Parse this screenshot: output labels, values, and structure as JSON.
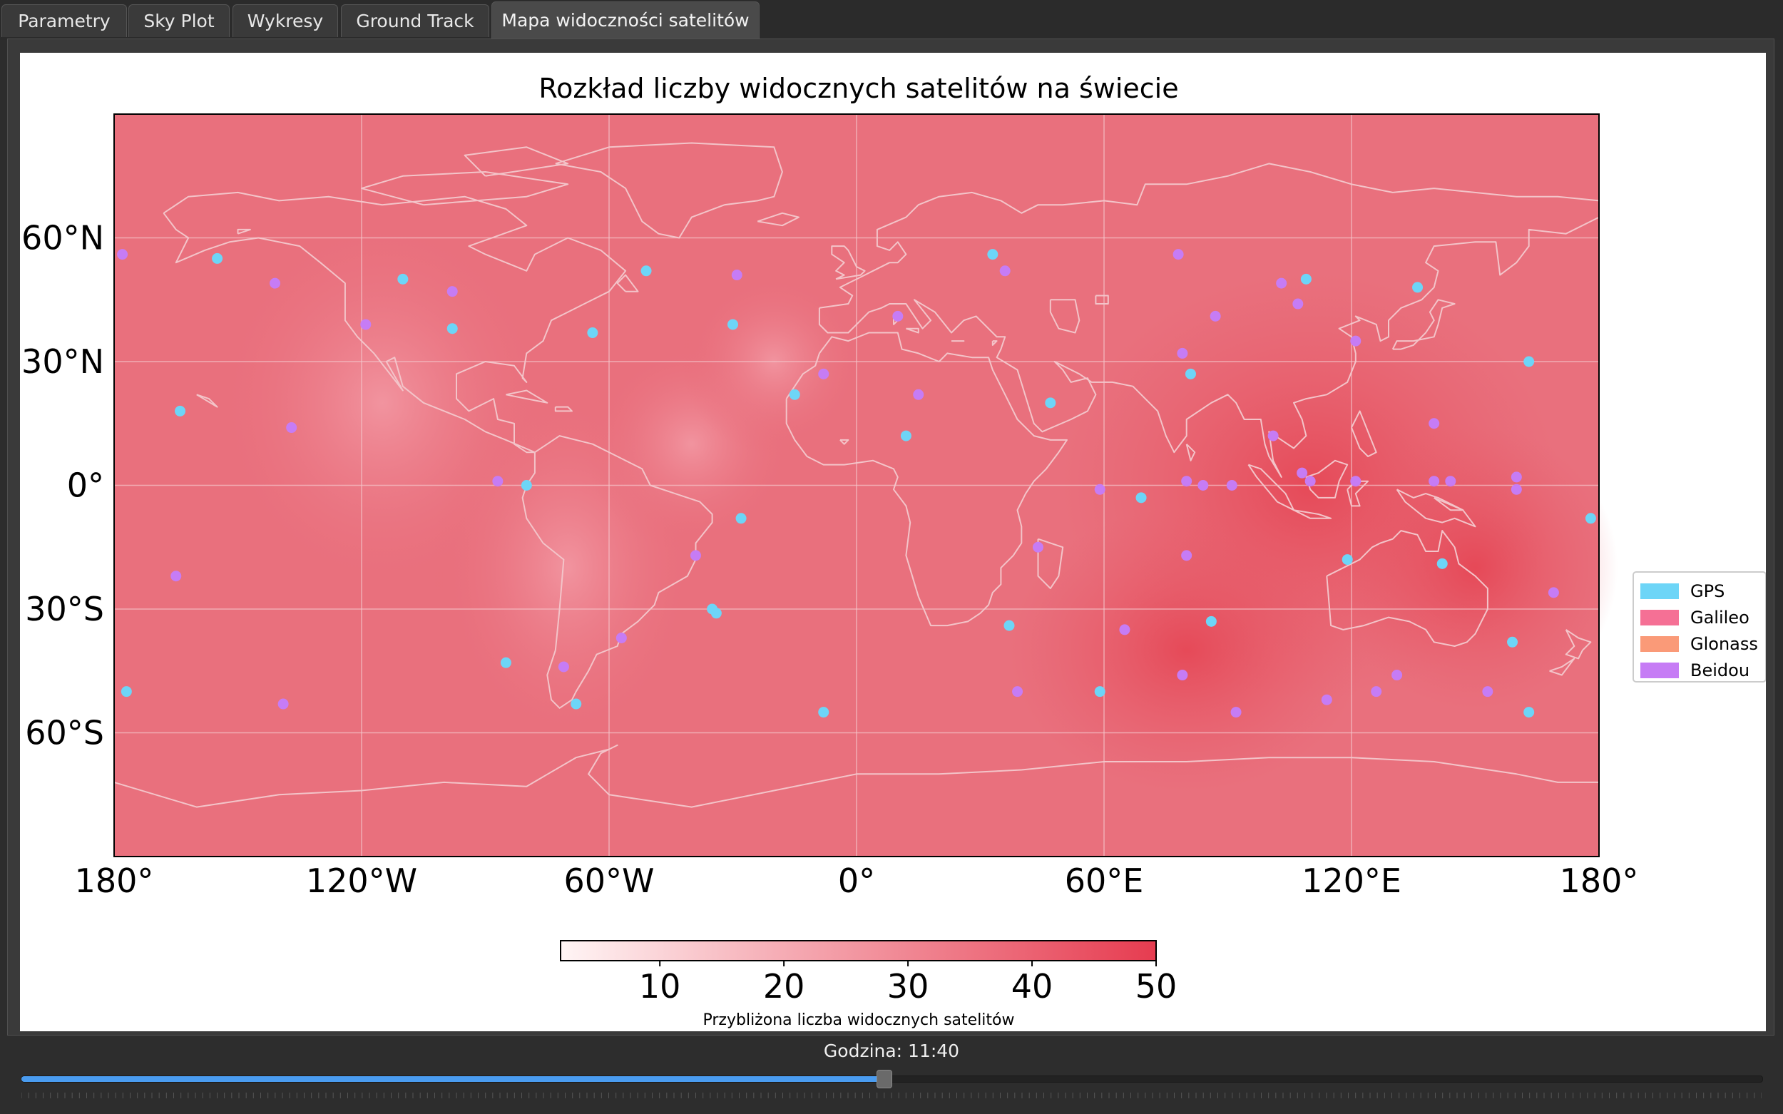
{
  "tabs": [
    {
      "label": "Parametry",
      "active": false
    },
    {
      "label": "Sky Plot",
      "active": false
    },
    {
      "label": "Wykresy",
      "active": false
    },
    {
      "label": "Ground Track",
      "active": false
    },
    {
      "label": "Mapa widoczności satelitów",
      "active": true
    }
  ],
  "time_label": "Godzina: 11:40",
  "slider": {
    "value_fraction": 0.496
  },
  "chart_data": {
    "type": "heatmap",
    "title": "Rozkład liczby widocznych satelitów na świecie",
    "x_tick_labels": [
      "180°",
      "120°W",
      "60°W",
      "0°",
      "60°E",
      "120°E",
      "180°"
    ],
    "x_ticks": [
      -180,
      -120,
      -60,
      0,
      60,
      120,
      180
    ],
    "y_tick_labels": [
      "60°N",
      "30°N",
      "0°",
      "30°S",
      "60°S"
    ],
    "y_ticks": [
      60,
      30,
      0,
      -30,
      -60
    ],
    "xlim": [
      -180,
      180
    ],
    "ylim": [
      -90,
      90
    ],
    "grid": true,
    "colorbar": {
      "label": "Przybliżona liczba widocznych satelitów",
      "tick_labels": [
        "10",
        "20",
        "30",
        "40",
        "50"
      ],
      "ticks": [
        10,
        20,
        30,
        40,
        50
      ],
      "range": [
        2,
        50
      ],
      "color_low": "#fff5f5",
      "color_high": "#e63c50"
    },
    "legend_position": "right",
    "series": [
      {
        "name": "GPS",
        "color": "#6dd5f7",
        "points": [
          [
            -177,
            -50
          ],
          [
            -164,
            18
          ],
          [
            -155,
            55
          ],
          [
            -110,
            50
          ],
          [
            -98,
            38
          ],
          [
            -80,
            0
          ],
          [
            -85,
            -43
          ],
          [
            -68,
            -53
          ],
          [
            -64,
            37
          ],
          [
            -51,
            52
          ],
          [
            -34,
            -31
          ],
          [
            -28,
            -8
          ],
          [
            -35,
            -30
          ],
          [
            -30,
            39
          ],
          [
            -15,
            22
          ],
          [
            -8,
            -55
          ],
          [
            12,
            12
          ],
          [
            33,
            56
          ],
          [
            47,
            20
          ],
          [
            59,
            -50
          ],
          [
            37,
            -34
          ],
          [
            69,
            -3
          ],
          [
            81,
            27
          ],
          [
            86,
            -33
          ],
          [
            109,
            50
          ],
          [
            119,
            -18
          ],
          [
            136,
            48
          ],
          [
            142,
            -19
          ],
          [
            159,
            -38
          ],
          [
            163,
            -55
          ],
          [
            163,
            30
          ],
          [
            178,
            -8
          ]
        ]
      },
      {
        "name": "Beidou",
        "color": "#c67cf5",
        "points": [
          [
            -178,
            56
          ],
          [
            -165,
            -22
          ],
          [
            -139,
            -53
          ],
          [
            -141,
            49
          ],
          [
            -137,
            14
          ],
          [
            -119,
            39
          ],
          [
            -98,
            47
          ],
          [
            -87,
            1
          ],
          [
            -71,
            -44
          ],
          [
            -57,
            -37
          ],
          [
            -39,
            -17
          ],
          [
            -29,
            51
          ],
          [
            -8,
            27
          ],
          [
            10,
            41
          ],
          [
            15,
            22
          ],
          [
            36,
            52
          ],
          [
            44,
            -15
          ],
          [
            39,
            -50
          ],
          [
            59,
            -1
          ],
          [
            65,
            -35
          ],
          [
            78,
            56
          ],
          [
            79,
            32
          ],
          [
            80,
            1
          ],
          [
            80,
            -17
          ],
          [
            79,
            -46
          ],
          [
            84,
            0
          ],
          [
            87,
            41
          ],
          [
            91,
            0
          ],
          [
            92,
            -55
          ],
          [
            101,
            12
          ],
          [
            103,
            49
          ],
          [
            107,
            44
          ],
          [
            108,
            3
          ],
          [
            110,
            1
          ],
          [
            114,
            -52
          ],
          [
            121,
            1
          ],
          [
            121,
            35
          ],
          [
            126,
            -50
          ],
          [
            131,
            -46
          ],
          [
            140,
            15
          ],
          [
            140,
            1
          ],
          [
            144,
            1
          ],
          [
            153,
            -50
          ],
          [
            160,
            -1
          ],
          [
            160,
            2
          ],
          [
            169,
            -26
          ]
        ]
      },
      {
        "name": "Galileo",
        "color": "#f57095",
        "points": []
      },
      {
        "name": "Glonass",
        "color": "#fa9a78",
        "points": []
      }
    ]
  }
}
